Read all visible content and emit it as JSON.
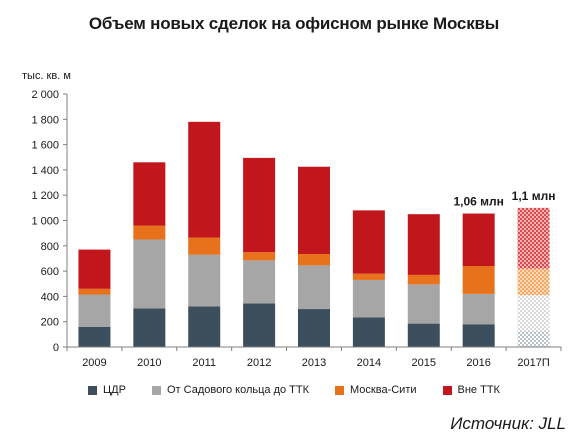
{
  "chart_data": {
    "type": "bar",
    "stacked": true,
    "title": "Объем новых сделок на офисном рынке Москвы",
    "ylabel": "тыс. кв. м",
    "xlabel": "",
    "ylim": [
      0,
      2000
    ],
    "yticks": [
      0,
      200,
      400,
      600,
      800,
      1000,
      1200,
      1400,
      1600,
      1800,
      2000
    ],
    "ytick_labels": [
      "0",
      "200",
      "400",
      "600",
      "800",
      "1 000",
      "1 200",
      "1 400",
      "1 600",
      "1 800",
      "2 000"
    ],
    "categories": [
      "2009",
      "2010",
      "2011",
      "2012",
      "2013",
      "2014",
      "2015",
      "2016",
      "2017П"
    ],
    "forecast_categories": [
      "2017П"
    ],
    "series": [
      {
        "name": "ЦДР",
        "color": "#3d4f5c",
        "values": [
          160,
          305,
          320,
          345,
          300,
          235,
          185,
          180,
          125
        ]
      },
      {
        "name": "От Садового кольца до ТТК",
        "color": "#a6a6a6",
        "values": [
          255,
          545,
          410,
          340,
          345,
          295,
          310,
          240,
          285
        ]
      },
      {
        "name": "Москва-Сити",
        "color": "#e8711c",
        "values": [
          45,
          110,
          135,
          65,
          90,
          50,
          75,
          220,
          210
        ]
      },
      {
        "name": "Вне ТТК",
        "color": "#c1161c",
        "values": [
          310,
          500,
          915,
          745,
          690,
          500,
          480,
          415,
          480
        ]
      }
    ],
    "annotations": [
      {
        "category": "2016",
        "text": "1,06 млн"
      },
      {
        "category": "2017П",
        "text": "1,1 млн"
      }
    ],
    "grid": false,
    "legend_position": "bottom"
  },
  "source": "Источник: JLL"
}
